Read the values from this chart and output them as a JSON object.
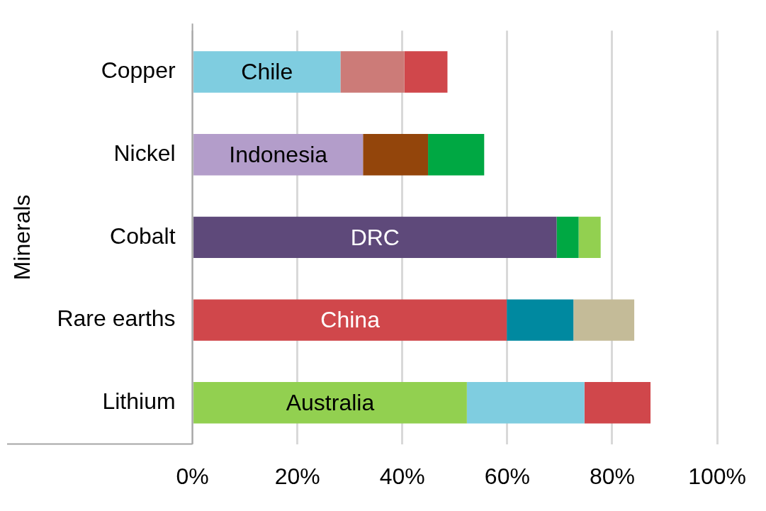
{
  "chart_data": {
    "type": "bar",
    "orientation": "horizontal",
    "stacked": true,
    "ylabel": "Minerals",
    "categories": [
      "Copper",
      "Nickel",
      "Cobalt",
      "Rare earths",
      "Lithium"
    ],
    "series": [
      {
        "colors": [
          "#7fcde0",
          "#b39dca",
          "#5e497a",
          "#d0474b",
          "#92d050"
        ],
        "values": [
          28.2,
          32.5,
          69.4,
          59.9,
          52.3
        ],
        "value_labels": [
          "Chile",
          "Indonesia",
          "DRC",
          "China",
          "Australia"
        ]
      },
      {
        "colors": [
          "#cc7b78",
          "#93450b",
          "#00a843",
          "#0089a0",
          "#7fcde0"
        ],
        "values": [
          12.2,
          12.4,
          4.2,
          12.7,
          22.4
        ]
      },
      {
        "colors": [
          "#d0474b",
          "#00a843",
          "#92d050",
          "#c4bb98",
          "#d0474b"
        ],
        "values": [
          8.2,
          10.7,
          4.2,
          11.6,
          12.6
        ]
      }
    ],
    "xlim": [
      0,
      100
    ],
    "xticks": [
      {
        "value": 0,
        "label": "0%"
      },
      {
        "value": 20,
        "label": "20%"
      },
      {
        "value": 40,
        "label": "40%"
      },
      {
        "value": 60,
        "label": "60%"
      },
      {
        "value": 80,
        "label": "80%"
      },
      {
        "value": 100,
        "label": "100%"
      }
    ],
    "grid": "x",
    "legend": false
  }
}
